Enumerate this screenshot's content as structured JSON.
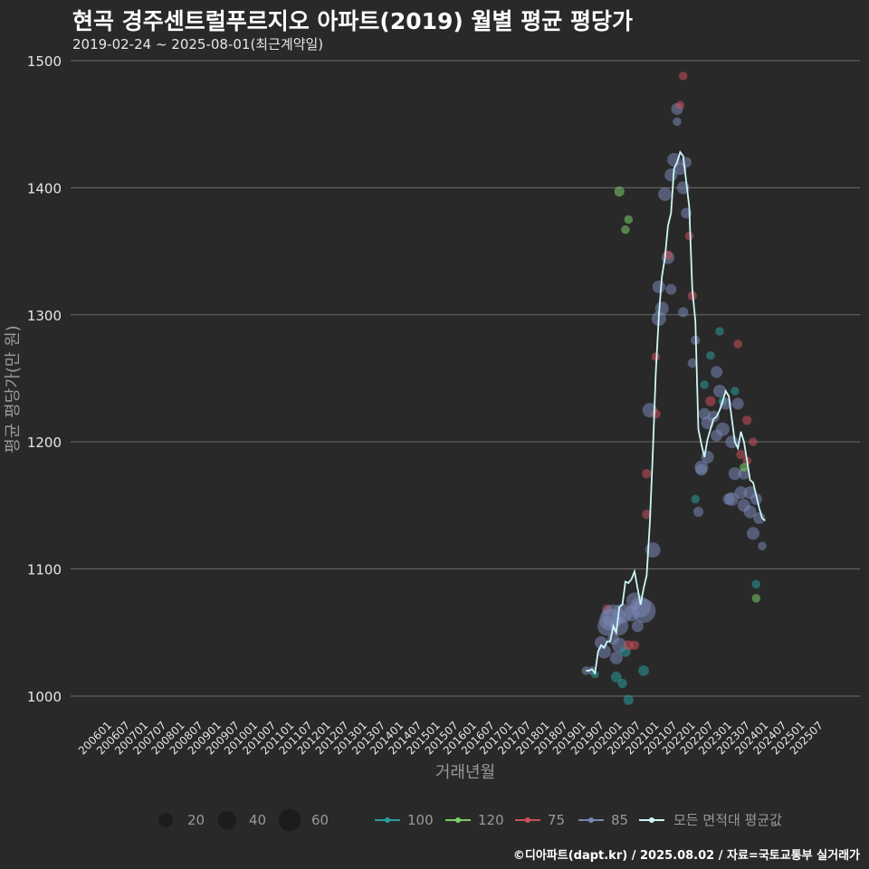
{
  "header": {
    "title": "현곡 경주센트럴푸르지오 아파트(2019) 월별 평균 평당가",
    "subtitle": "2019-02-24 ~ 2025-08-01(최근계약일)"
  },
  "caption": "©디아파트(dapt.kr) / 2025.08.02 / 자료=국토교통부 실거래가",
  "colors": {
    "background": "#292929",
    "grid": "#6b6b6b",
    "avg_line": "#cdf7f7",
    "area_100": "#2a9d9a",
    "area_120": "#7ccd6a",
    "area_75": "#c9515b",
    "area_85": "#7a86b4",
    "size_legend": "#1c1c1c"
  },
  "chart_data": {
    "type": "line+scatter",
    "title": "현곡 경주센트럴푸르지오 아파트(2019) 월별 평균 평당가",
    "xlabel": "거래년월",
    "ylabel": "평균 평당가(만 원)",
    "ylim": [
      985,
      1505
    ],
    "yticks": [
      1000,
      1100,
      1200,
      1300,
      1400,
      1500
    ],
    "x_range_index": [
      0,
      240
    ],
    "x_ticks": [
      "200601",
      "200607",
      "200701",
      "200707",
      "200801",
      "200807",
      "200901",
      "200907",
      "201001",
      "201007",
      "201101",
      "201107",
      "201201",
      "201207",
      "201301",
      "201307",
      "201401",
      "201407",
      "201501",
      "201507",
      "201601",
      "201607",
      "201701",
      "201707",
      "201801",
      "201807",
      "201901",
      "201907",
      "202001",
      "202007",
      "202101",
      "202107",
      "202201",
      "202207",
      "202301",
      "202307",
      "202401",
      "202407",
      "202501",
      "202507"
    ],
    "legend": {
      "size_items": [
        {
          "label": "20",
          "value": 20
        },
        {
          "label": "40",
          "value": 40
        },
        {
          "label": "60",
          "value": 60
        }
      ],
      "area_items": [
        {
          "label": "100",
          "color_key": "area_100"
        },
        {
          "label": "120",
          "color_key": "area_120"
        },
        {
          "label": "75",
          "color_key": "area_75"
        },
        {
          "label": "85",
          "color_key": "area_85"
        }
      ],
      "avg_label": "모든 면적대 평균값"
    },
    "avg_series": {
      "name": "모든 면적대 평균값",
      "points": [
        [
          157,
          1020
        ],
        [
          158,
          1020
        ],
        [
          159,
          1021
        ],
        [
          160,
          1018
        ],
        [
          161,
          1035
        ],
        [
          162,
          1040
        ],
        [
          163,
          1038
        ],
        [
          164,
          1043
        ],
        [
          165,
          1043
        ],
        [
          166,
          1055
        ],
        [
          167,
          1050
        ],
        [
          168,
          1070
        ],
        [
          169,
          1072
        ],
        [
          170,
          1090
        ],
        [
          171,
          1089
        ],
        [
          172,
          1092
        ],
        [
          173,
          1098
        ],
        [
          174,
          1085
        ],
        [
          175,
          1072
        ],
        [
          176,
          1085
        ],
        [
          177,
          1095
        ],
        [
          178,
          1135
        ],
        [
          179,
          1190
        ],
        [
          180,
          1255
        ],
        [
          181,
          1300
        ],
        [
          182,
          1330
        ],
        [
          183,
          1345
        ],
        [
          184,
          1370
        ],
        [
          185,
          1380
        ],
        [
          186,
          1415
        ],
        [
          187,
          1420
        ],
        [
          188,
          1428
        ],
        [
          189,
          1425
        ],
        [
          190,
          1405
        ],
        [
          191,
          1385
        ],
        [
          192,
          1320
        ],
        [
          193,
          1295
        ],
        [
          194,
          1210
        ],
        [
          195,
          1198
        ],
        [
          196,
          1188
        ],
        [
          197,
          1202
        ],
        [
          198,
          1210
        ],
        [
          199,
          1218
        ],
        [
          200,
          1220
        ],
        [
          201,
          1225
        ],
        [
          202,
          1232
        ],
        [
          203,
          1240
        ],
        [
          204,
          1236
        ],
        [
          205,
          1218
        ],
        [
          206,
          1200
        ],
        [
          207,
          1195
        ],
        [
          208,
          1208
        ],
        [
          209,
          1200
        ],
        [
          210,
          1185
        ],
        [
          211,
          1170
        ],
        [
          212,
          1168
        ],
        [
          213,
          1158
        ],
        [
          214,
          1148
        ],
        [
          215,
          1140
        ],
        [
          216,
          1138
        ]
      ]
    },
    "points": [
      {
        "x": 157,
        "y": 1020,
        "area": "85",
        "n": 3
      },
      {
        "x": 159,
        "y": 1020,
        "area": "85",
        "n": 3
      },
      {
        "x": 160,
        "y": 1017,
        "area": "100",
        "n": 2
      },
      {
        "x": 162,
        "y": 1042,
        "area": "85",
        "n": 10
      },
      {
        "x": 163,
        "y": 1035,
        "area": "85",
        "n": 12
      },
      {
        "x": 164,
        "y": 1055,
        "area": "85",
        "n": 30
      },
      {
        "x": 164,
        "y": 1068,
        "area": "75",
        "n": 5
      },
      {
        "x": 165,
        "y": 1060,
        "area": "85",
        "n": 40
      },
      {
        "x": 166,
        "y": 1063,
        "area": "85",
        "n": 45
      },
      {
        "x": 166,
        "y": 1045,
        "area": "85",
        "n": 8
      },
      {
        "x": 167,
        "y": 1030,
        "area": "85",
        "n": 10
      },
      {
        "x": 167,
        "y": 1015,
        "area": "100",
        "n": 6
      },
      {
        "x": 168,
        "y": 1040,
        "area": "85",
        "n": 15
      },
      {
        "x": 168,
        "y": 1055,
        "area": "85",
        "n": 25
      },
      {
        "x": 169,
        "y": 1065,
        "area": "85",
        "n": 30
      },
      {
        "x": 169,
        "y": 1010,
        "area": "100",
        "n": 4
      },
      {
        "x": 170,
        "y": 1035,
        "area": "100",
        "n": 6
      },
      {
        "x": 171,
        "y": 997,
        "area": "100",
        "n": 5
      },
      {
        "x": 171,
        "y": 1040,
        "area": "75",
        "n": 5
      },
      {
        "x": 172,
        "y": 1065,
        "area": "85",
        "n": 18
      },
      {
        "x": 173,
        "y": 1075,
        "area": "85",
        "n": 20
      },
      {
        "x": 173,
        "y": 1040,
        "area": "75",
        "n": 4
      },
      {
        "x": 174,
        "y": 1055,
        "area": "85",
        "n": 8
      },
      {
        "x": 175,
        "y": 1070,
        "area": "85",
        "n": 35
      },
      {
        "x": 176,
        "y": 1067,
        "area": "85",
        "n": 50
      },
      {
        "x": 176,
        "y": 1020,
        "area": "100",
        "n": 6
      },
      {
        "x": 177,
        "y": 1175,
        "area": "75",
        "n": 4
      },
      {
        "x": 177,
        "y": 1143,
        "area": "75",
        "n": 4
      },
      {
        "x": 178,
        "y": 1225,
        "area": "85",
        "n": 14
      },
      {
        "x": 179,
        "y": 1115,
        "area": "85",
        "n": 16
      },
      {
        "x": 180,
        "y": 1267,
        "area": "75",
        "n": 3
      },
      {
        "x": 180,
        "y": 1222,
        "area": "75",
        "n": 4
      },
      {
        "x": 181,
        "y": 1322,
        "area": "85",
        "n": 10
      },
      {
        "x": 181,
        "y": 1297,
        "area": "85",
        "n": 14
      },
      {
        "x": 182,
        "y": 1305,
        "area": "85",
        "n": 12
      },
      {
        "x": 183,
        "y": 1395,
        "area": "85",
        "n": 12
      },
      {
        "x": 184,
        "y": 1345,
        "area": "85",
        "n": 10
      },
      {
        "x": 184,
        "y": 1347,
        "area": "75",
        "n": 4
      },
      {
        "x": 185,
        "y": 1410,
        "area": "85",
        "n": 10
      },
      {
        "x": 185,
        "y": 1320,
        "area": "85",
        "n": 6
      },
      {
        "x": 186,
        "y": 1422,
        "area": "85",
        "n": 12
      },
      {
        "x": 187,
        "y": 1462,
        "area": "85",
        "n": 8
      },
      {
        "x": 187,
        "y": 1452,
        "area": "85",
        "n": 3
      },
      {
        "x": 188,
        "y": 1465,
        "area": "75",
        "n": 3
      },
      {
        "x": 188,
        "y": 1415,
        "area": "85",
        "n": 10
      },
      {
        "x": 189,
        "y": 1400,
        "area": "85",
        "n": 10
      },
      {
        "x": 189,
        "y": 1488,
        "area": "75",
        "n": 3
      },
      {
        "x": 189,
        "y": 1302,
        "area": "85",
        "n": 5
      },
      {
        "x": 190,
        "y": 1380,
        "area": "85",
        "n": 6
      },
      {
        "x": 190,
        "y": 1420,
        "area": "85",
        "n": 6
      },
      {
        "x": 191,
        "y": 1362,
        "area": "75",
        "n": 3
      },
      {
        "x": 192,
        "y": 1262,
        "area": "85",
        "n": 4
      },
      {
        "x": 192,
        "y": 1315,
        "area": "75",
        "n": 4
      },
      {
        "x": 193,
        "y": 1280,
        "area": "85",
        "n": 4
      },
      {
        "x": 193,
        "y": 1155,
        "area": "100",
        "n": 3
      },
      {
        "x": 194,
        "y": 1145,
        "area": "85",
        "n": 5
      },
      {
        "x": 195,
        "y": 1180,
        "area": "85",
        "n": 12
      },
      {
        "x": 195,
        "y": 1178,
        "area": "85",
        "n": 8
      },
      {
        "x": 196,
        "y": 1245,
        "area": "100",
        "n": 3
      },
      {
        "x": 196,
        "y": 1222,
        "area": "85",
        "n": 8
      },
      {
        "x": 197,
        "y": 1188,
        "area": "85",
        "n": 10
      },
      {
        "x": 197,
        "y": 1215,
        "area": "85",
        "n": 10
      },
      {
        "x": 198,
        "y": 1232,
        "area": "75",
        "n": 5
      },
      {
        "x": 198,
        "y": 1268,
        "area": "100",
        "n": 3
      },
      {
        "x": 199,
        "y": 1220,
        "area": "85",
        "n": 8
      },
      {
        "x": 200,
        "y": 1255,
        "area": "85",
        "n": 8
      },
      {
        "x": 200,
        "y": 1205,
        "area": "85",
        "n": 8
      },
      {
        "x": 201,
        "y": 1287,
        "area": "100",
        "n": 3
      },
      {
        "x": 201,
        "y": 1240,
        "area": "85",
        "n": 10
      },
      {
        "x": 202,
        "y": 1210,
        "area": "85",
        "n": 12
      },
      {
        "x": 202,
        "y": 1232,
        "area": "100",
        "n": 3
      },
      {
        "x": 203,
        "y": 1230,
        "area": "85",
        "n": 8
      },
      {
        "x": 204,
        "y": 1155,
        "area": "85",
        "n": 8
      },
      {
        "x": 205,
        "y": 1155,
        "area": "85",
        "n": 12
      },
      {
        "x": 205,
        "y": 1200,
        "area": "85",
        "n": 10
      },
      {
        "x": 206,
        "y": 1175,
        "area": "85",
        "n": 10
      },
      {
        "x": 206,
        "y": 1240,
        "area": "100",
        "n": 3
      },
      {
        "x": 207,
        "y": 1277,
        "area": "75",
        "n": 3
      },
      {
        "x": 207,
        "y": 1230,
        "area": "85",
        "n": 8
      },
      {
        "x": 208,
        "y": 1190,
        "area": "75",
        "n": 4
      },
      {
        "x": 208,
        "y": 1160,
        "area": "85",
        "n": 10
      },
      {
        "x": 209,
        "y": 1150,
        "area": "85",
        "n": 10
      },
      {
        "x": 209,
        "y": 1175,
        "area": "85",
        "n": 8
      },
      {
        "x": 210,
        "y": 1185,
        "area": "75",
        "n": 3
      },
      {
        "x": 210,
        "y": 1217,
        "area": "75",
        "n": 4
      },
      {
        "x": 211,
        "y": 1145,
        "area": "85",
        "n": 10
      },
      {
        "x": 211,
        "y": 1160,
        "area": "85",
        "n": 10
      },
      {
        "x": 212,
        "y": 1128,
        "area": "85",
        "n": 10
      },
      {
        "x": 212,
        "y": 1200,
        "area": "75",
        "n": 3
      },
      {
        "x": 213,
        "y": 1155,
        "area": "85",
        "n": 8
      },
      {
        "x": 213,
        "y": 1088,
        "area": "100",
        "n": 3
      },
      {
        "x": 214,
        "y": 1140,
        "area": "85",
        "n": 8
      },
      {
        "x": 215,
        "y": 1118,
        "area": "85",
        "n": 3
      },
      {
        "x": 168,
        "y": 1397,
        "area": "120",
        "n": 5
      },
      {
        "x": 170,
        "y": 1367,
        "area": "120",
        "n": 3
      },
      {
        "x": 171,
        "y": 1375,
        "area": "120",
        "n": 3
      },
      {
        "x": 209,
        "y": 1180,
        "area": "120",
        "n": 3
      },
      {
        "x": 213,
        "y": 1077,
        "area": "120",
        "n": 3
      }
    ]
  }
}
